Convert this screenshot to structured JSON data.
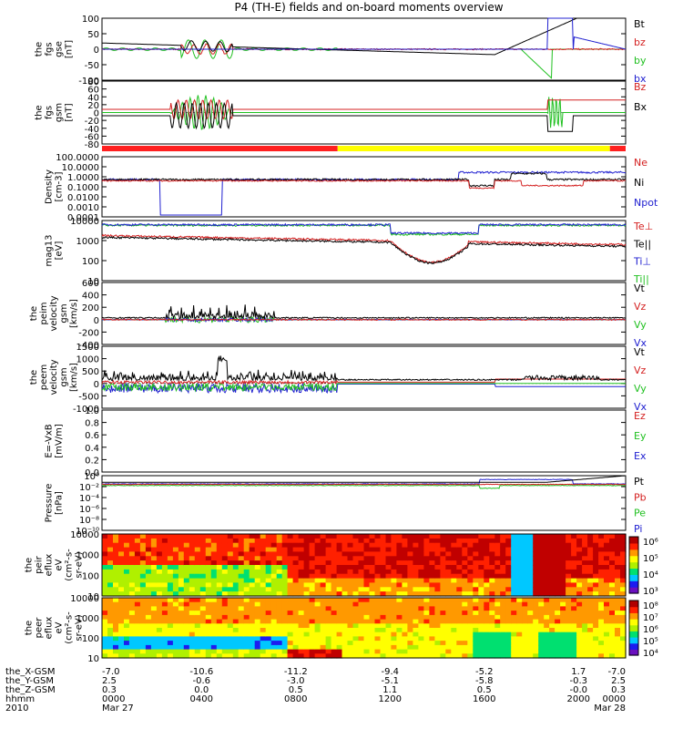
{
  "title": "P4 (TH-E) fields and on-board moments overview",
  "panels": [
    {
      "id": "fgs_gse",
      "ylabel": [
        "the",
        "fgs",
        "gse",
        "[nT]"
      ],
      "ticks": [
        "100",
        "50",
        "0",
        "-50",
        "-100"
      ],
      "legend": [
        {
          "t": "Bt",
          "c": "#000000"
        },
        {
          "t": "bz",
          "c": "#d42020"
        },
        {
          "t": "by",
          "c": "#20c020"
        },
        {
          "t": "bx",
          "c": "#2020d0"
        }
      ]
    },
    {
      "id": "fgs_gsm",
      "ylabel": [
        "the",
        "fgs",
        "gsm",
        "[nT]"
      ],
      "ticks": [
        "80",
        "60",
        "40",
        "20",
        "0",
        "-20",
        "-40",
        "-60",
        "-80"
      ],
      "legend": [
        {
          "t": "Bz",
          "c": "#d42020"
        },
        {
          "t": "Bx",
          "c": "#000000"
        }
      ]
    },
    {
      "id": "density",
      "ylabel": [
        "Density",
        "[cm-3]"
      ],
      "ticks": [
        "100.0000",
        "10.0000",
        "1.0000",
        "0.1000",
        "0.0100",
        "0.0010",
        "0.0001"
      ],
      "legend": [
        {
          "t": "Ne",
          "c": "#d42020"
        },
        {
          "t": "Ni",
          "c": "#000000"
        },
        {
          "t": "Npot",
          "c": "#2020d0"
        }
      ]
    },
    {
      "id": "temp",
      "ylabel": [
        "mag13",
        "[eV]"
      ],
      "ticks": [
        "10000",
        "1000",
        "100",
        "10"
      ],
      "legend": [
        {
          "t": "Te⊥",
          "c": "#d42020"
        },
        {
          "t": "Te||",
          "c": "#000000"
        },
        {
          "t": "Ti⊥",
          "c": "#2020d0"
        },
        {
          "t": "Ti||",
          "c": "#20c020"
        }
      ]
    },
    {
      "id": "peim_vel",
      "ylabel": [
        "the",
        "peim",
        "velocity",
        "gsm",
        "[km/s]"
      ],
      "ticks": [
        "600",
        "400",
        "200",
        "0",
        "-200",
        "-400"
      ],
      "legend": [
        {
          "t": "Vt",
          "c": "#000000"
        },
        {
          "t": "Vz",
          "c": "#d42020"
        },
        {
          "t": "Vy",
          "c": "#20c020"
        },
        {
          "t": "Vx",
          "c": "#2020d0"
        }
      ]
    },
    {
      "id": "peem_vel",
      "ylabel": [
        "the",
        "peem",
        "velocity",
        "gsm",
        "[km/s]"
      ],
      "ticks": [
        "1500",
        "1000",
        "500",
        "0",
        "-500",
        "-1000"
      ],
      "legend": [
        {
          "t": "Vt",
          "c": "#000000"
        },
        {
          "t": "Vz",
          "c": "#d42020"
        },
        {
          "t": "Vy",
          "c": "#20c020"
        },
        {
          "t": "Vx",
          "c": "#2020d0"
        }
      ]
    },
    {
      "id": "efield",
      "ylabel": [
        "E=-VxB",
        "[mV/m]"
      ],
      "ticks": [
        "1.0",
        "0.8",
        "0.6",
        "0.4",
        "0.2",
        "0.0"
      ],
      "legend": [
        {
          "t": "Ez",
          "c": "#d42020"
        },
        {
          "t": "Ey",
          "c": "#20c020"
        },
        {
          "t": "Ex",
          "c": "#2020d0"
        }
      ]
    },
    {
      "id": "pressure",
      "ylabel": [
        "Pressure",
        "[nPa]"
      ],
      "ticks": [
        "10⁰",
        "10⁻²",
        "10⁻⁴",
        "10⁻⁶",
        "10⁻⁸",
        "10⁻¹⁰"
      ],
      "legend": [
        {
          "t": "Pt",
          "c": "#000000"
        },
        {
          "t": "Pb",
          "c": "#d42020"
        },
        {
          "t": "Pe",
          "c": "#20c020"
        },
        {
          "t": "Pi",
          "c": "#2020d0"
        }
      ]
    },
    {
      "id": "peir_eflux",
      "ylabel": [
        "the",
        "peir",
        "eflux",
        "eV",
        "(cm²-s-",
        "sr-eV)"
      ],
      "ticks": [
        "10000",
        "1000",
        "100",
        "10"
      ],
      "cbar": [
        "10⁶",
        "10⁵",
        "10⁴",
        "10³"
      ]
    },
    {
      "id": "peer_eflux",
      "ylabel": [
        "the",
        "peer",
        "eflux",
        "eV",
        "(cm²-s-",
        "sr-eV)"
      ],
      "ticks": [
        "10000",
        "1000",
        "100",
        "10"
      ],
      "cbar": [
        "10⁸",
        "10⁷",
        "10⁶",
        "10⁵",
        "10⁴"
      ]
    }
  ],
  "footer": {
    "rows": [
      {
        "label": "the_X-GSM",
        "values": [
          "-7.0",
          "-10.6",
          "-11.2",
          "-9.4",
          "-5.2",
          "1.7",
          "-7.0"
        ]
      },
      {
        "label": "the_Y-GSM",
        "values": [
          "2.5",
          "-0.6",
          "-3.0",
          "-5.1",
          "-5.8",
          "-0.3",
          "2.5"
        ]
      },
      {
        "label": "the_Z-GSM",
        "values": [
          "0.3",
          "0.0",
          "0.5",
          "1.1",
          "0.5",
          "-0.0",
          "0.3"
        ]
      },
      {
        "label": "hhmm",
        "values": [
          "0000",
          "0400",
          "0800",
          "1200",
          "1600",
          "2000",
          "0000"
        ]
      },
      {
        "label": "2010",
        "values": [
          "Mar 27",
          "",
          "",
          "",
          "",
          "",
          "Mar 28"
        ]
      }
    ]
  },
  "colors": {
    "axis": "#000000",
    "black": "#000000",
    "red": "#d42020",
    "green": "#20c020",
    "blue": "#2020d0",
    "yellow": "#ffff00"
  }
}
